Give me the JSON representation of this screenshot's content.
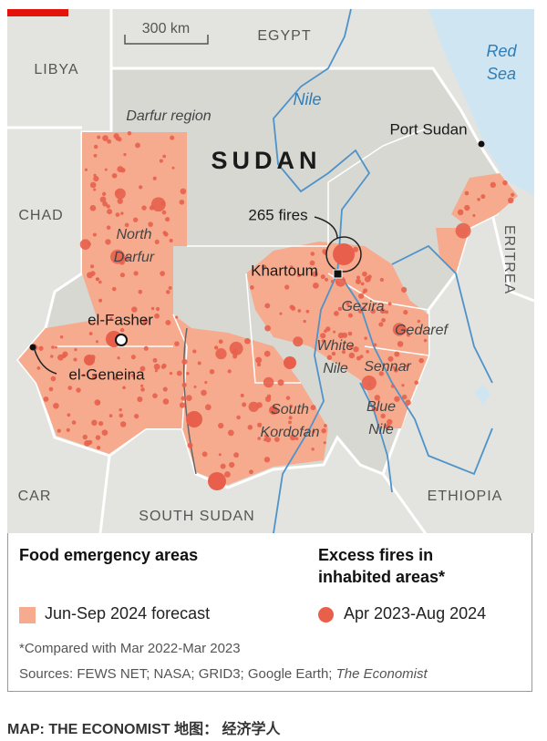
{
  "map": {
    "scale": "300 km",
    "labels": [
      {
        "text": "EGYPT"
      },
      {
        "text": "LIBYA"
      },
      {
        "lines": [
          "Red",
          "Sea"
        ]
      },
      {
        "text": "Darfur region"
      },
      {
        "text": "Nile"
      },
      {
        "text": "SUDAN"
      },
      {
        "text": "Port Sudan"
      },
      {
        "text": "CHAD"
      },
      {
        "text": "265 fires"
      },
      {
        "lines": [
          "North",
          "Darfur"
        ]
      },
      {
        "text": "Khartoum"
      },
      {
        "text": "ERITREA"
      },
      {
        "text": "el-Fasher"
      },
      {
        "text": "Gezira"
      },
      {
        "text": "Gedaref"
      },
      {
        "lines": [
          "White",
          "Nile"
        ]
      },
      {
        "text": "Sennar"
      },
      {
        "text": "el-Geneina"
      },
      {
        "lines": [
          "South",
          "Kordofan"
        ]
      },
      {
        "lines": [
          "Blue",
          "Nile"
        ]
      },
      {
        "text": "CAR"
      },
      {
        "text": "ETHIOPIA"
      },
      {
        "text": "SOUTH SUDAN"
      }
    ]
  },
  "legend": {
    "food": {
      "title": "Food emergency areas",
      "item": "Jun-Sep 2024 forecast"
    },
    "fires": {
      "title": "Excess fires in inhabited areas*",
      "item": "Apr 2023-Aug 2024"
    },
    "footnote": "*Compared with Mar 2022-Mar 2023",
    "sources": {
      "text": "Sources: FEWS NET; NASA; GRID3; Google Earth;",
      "italic": "The Economist"
    }
  },
  "footer": "MAP: THE ECONOMIST 地图： 经济学人"
}
